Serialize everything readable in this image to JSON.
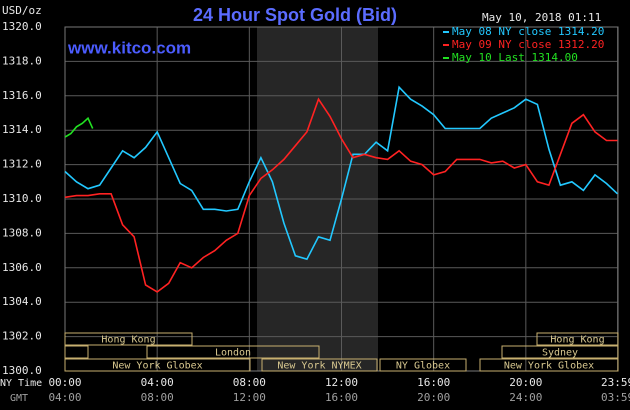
{
  "chart_data": {
    "type": "line",
    "title": "24 Hour Spot Gold (Bid)",
    "site": "www.kitco.com",
    "timestamp": "May 10, 2018 01:11",
    "y_label": "USD/oz",
    "x_label": "NY Time",
    "x2_label": "GMT",
    "xlim": [
      0,
      24
    ],
    "xticks": [
      {
        "value": 0,
        "label": "00:00"
      },
      {
        "value": 4,
        "label": "04:00"
      },
      {
        "value": 8,
        "label": "08:00"
      },
      {
        "value": 12,
        "label": "12:00"
      },
      {
        "value": 16,
        "label": "16:00"
      },
      {
        "value": 20,
        "label": "20:00"
      },
      {
        "value": 23.983,
        "label": "23:59"
      }
    ],
    "x2ticks": [
      {
        "value": 0,
        "label": "04:00"
      },
      {
        "value": 4,
        "label": "08:00"
      },
      {
        "value": 8,
        "label": "12:00"
      },
      {
        "value": 12,
        "label": "16:00"
      },
      {
        "value": 16,
        "label": "20:00"
      },
      {
        "value": 20,
        "label": "24:00"
      },
      {
        "value": 23.983,
        "label": "03:59"
      }
    ],
    "ylim": [
      1300,
      1320
    ],
    "yticks": [
      {
        "value": 1300,
        "label": "1300.0"
      },
      {
        "value": 1302,
        "label": "1302.0"
      },
      {
        "value": 1304,
        "label": "1304.0"
      },
      {
        "value": 1306,
        "label": "1306.0"
      },
      {
        "value": 1308,
        "label": "1308.0"
      },
      {
        "value": 1310,
        "label": "1310.0"
      },
      {
        "value": 1312,
        "label": "1312.0"
      },
      {
        "value": 1314,
        "label": "1314.0"
      },
      {
        "value": 1316,
        "label": "1316.0"
      },
      {
        "value": 1318,
        "label": "1318.0"
      },
      {
        "value": 1320,
        "label": "1320.0"
      }
    ],
    "grid": true,
    "sessions": [
      "Hong Kong",
      "Hong Kong",
      "London",
      "Sydney",
      "New York Globex",
      "New York NYMEX",
      "NY Globex",
      "New York Globex"
    ],
    "series": [
      {
        "name": "May 08 NY close 1314.20",
        "color": "#22c8ff",
        "x": [
          0,
          0.5,
          1,
          1.5,
          2,
          2.5,
          3,
          3.5,
          4,
          4.5,
          5,
          5.5,
          6,
          6.5,
          7,
          7.5,
          8,
          8.5,
          9,
          9.5,
          10,
          10.5,
          11,
          11.5,
          12,
          12.5,
          13,
          13.5,
          14,
          14.5,
          15,
          15.5,
          16,
          16.5,
          17,
          17.5,
          18,
          18.5,
          19,
          19.5,
          20,
          20.5,
          21,
          21.5,
          22,
          22.5,
          23,
          23.5,
          23.98
        ],
        "values": [
          1311.6,
          1311.0,
          1310.6,
          1310.8,
          1311.8,
          1312.8,
          1312.4,
          1313.0,
          1313.9,
          1312.4,
          1310.9,
          1310.5,
          1309.4,
          1309.4,
          1309.3,
          1309.4,
          1311.0,
          1312.4,
          1311.0,
          1308.6,
          1306.7,
          1306.5,
          1307.8,
          1307.6,
          1310.0,
          1312.6,
          1312.6,
          1313.3,
          1312.8,
          1316.5,
          1315.8,
          1315.4,
          1314.9,
          1314.1,
          1314.1,
          1314.1,
          1314.1,
          1314.7,
          1315.0,
          1315.3,
          1315.8,
          1315.5,
          1312.9,
          1310.8,
          1311.0,
          1310.5,
          1311.4,
          1310.9,
          1310.3
        ]
      },
      {
        "name": "May 09 NY close 1312.20",
        "color": "#ff2222",
        "x": [
          0,
          0.5,
          1,
          1.5,
          2,
          2.5,
          3,
          3.5,
          4,
          4.5,
          5,
          5.5,
          6,
          6.5,
          7,
          7.5,
          8,
          8.5,
          9,
          9.5,
          10,
          10.5,
          11,
          11.5,
          12,
          12.5,
          13,
          13.5,
          14,
          14.5,
          15,
          15.5,
          16,
          16.5,
          17,
          17.5,
          18,
          18.5,
          19,
          19.5,
          20,
          20.5,
          21,
          21.5,
          22,
          22.5,
          23,
          23.5,
          23.98
        ],
        "values": [
          1310.1,
          1310.2,
          1310.2,
          1310.3,
          1310.3,
          1308.5,
          1307.8,
          1305.0,
          1304.6,
          1305.1,
          1306.3,
          1306.0,
          1306.6,
          1307.0,
          1307.6,
          1308.0,
          1310.2,
          1311.2,
          1311.7,
          1312.3,
          1313.1,
          1313.9,
          1315.8,
          1314.8,
          1313.5,
          1312.4,
          1312.6,
          1312.4,
          1312.3,
          1312.8,
          1312.2,
          1312.0,
          1311.4,
          1311.6,
          1312.3,
          1312.3,
          1312.3,
          1312.1,
          1312.2,
          1311.8,
          1312.0,
          1311.0,
          1310.8,
          1312.6,
          1314.4,
          1314.9,
          1313.9,
          1313.4,
          1313.4
        ]
      },
      {
        "name": "May 10 Last 1314.00",
        "color": "#22e022",
        "x": [
          0,
          0.25,
          0.5,
          0.75,
          1,
          1.2
        ],
        "values": [
          1313.6,
          1313.8,
          1314.2,
          1314.4,
          1314.7,
          1314.1
        ]
      }
    ]
  }
}
